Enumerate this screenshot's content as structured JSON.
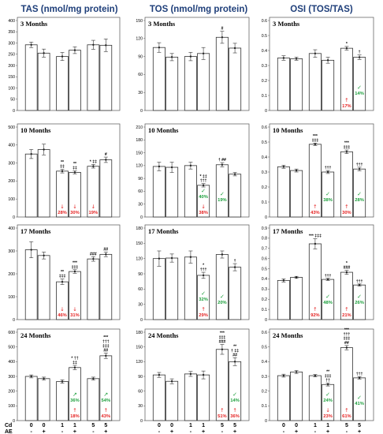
{
  "column_titles": [
    "TAS (nmol/mg protein)",
    "TOS (nmol/mg protein)",
    "OSI (TOS/TAS)"
  ],
  "x_axis": {
    "cd_label": "Cd",
    "ae_label": "AE",
    "cd_values": [
      "0",
      "0",
      "1",
      "1",
      "5",
      "5"
    ],
    "ae_values": [
      "-",
      "+",
      "-",
      "+",
      "-",
      "+"
    ]
  },
  "colors": {
    "title": "#1f3f7a",
    "decrease": "#e41f1f",
    "improve": "#1a9e3a",
    "bar_fill": "#ffffff",
    "bar_stroke": "#333333"
  },
  "chart_data": [
    {
      "type": "bar",
      "row": 0,
      "col": 0,
      "title": "3 Months",
      "ylim": [
        0,
        400
      ],
      "yticks": [
        0,
        50,
        100,
        150,
        200,
        250,
        300,
        350,
        400
      ],
      "values": [
        292,
        255,
        240,
        268,
        292,
        290
      ],
      "errors": [
        12,
        18,
        18,
        15,
        20,
        28
      ],
      "sig": [
        [],
        [],
        [],
        [],
        [],
        []
      ],
      "pct": [
        null,
        null,
        null,
        null,
        null,
        null
      ]
    },
    {
      "type": "bar",
      "row": 0,
      "col": 1,
      "title": "3 Months",
      "ylim": [
        0,
        150
      ],
      "yticks": [
        0,
        30,
        60,
        90,
        120,
        150
      ],
      "values": [
        105,
        89,
        90,
        95,
        122,
        104
      ],
      "errors": [
        8,
        6,
        7,
        10,
        10,
        8
      ],
      "sig": [
        [],
        [],
        [],
        [],
        [
          "#"
        ],
        []
      ],
      "pct": [
        null,
        null,
        null,
        null,
        null,
        null
      ]
    },
    {
      "type": "bar",
      "row": 0,
      "col": 2,
      "title": "3 Months",
      "ylim": [
        0,
        0.6
      ],
      "yticks": [
        0,
        0.1,
        0.2,
        0.3,
        0.4,
        0.5,
        0.6
      ],
      "values": [
        0.35,
        0.345,
        0.38,
        0.335,
        0.415,
        0.355
      ],
      "errors": [
        0.015,
        0.01,
        0.025,
        0.02,
        0.012,
        0.015
      ],
      "sig": [
        [],
        [],
        [],
        [],
        [
          "*"
        ],
        [
          "†"
        ]
      ],
      "pct": [
        null,
        null,
        null,
        null,
        {
          "dir": "up",
          "text": "17%",
          "color": "red"
        },
        {
          "dir": "check",
          "text": "14%",
          "color": "green"
        }
      ]
    },
    {
      "type": "bar",
      "row": 1,
      "col": 0,
      "title": "10 Months",
      "ylim": [
        0,
        500
      ],
      "yticks": [
        0,
        100,
        200,
        300,
        400,
        500
      ],
      "values": [
        350,
        375,
        255,
        248,
        282,
        318
      ],
      "errors": [
        25,
        30,
        10,
        8,
        10,
        15
      ],
      "sig": [
        [],
        [],
        [
          "**",
          "‡‡"
        ],
        [
          "**",
          "‡‡"
        ],
        [
          "* ‡‡"
        ],
        [
          "#"
        ]
      ],
      "pct": [
        null,
        null,
        {
          "dir": "down",
          "text": "28%",
          "color": "red"
        },
        {
          "dir": "down",
          "text": "30%",
          "color": "red"
        },
        {
          "dir": "down",
          "text": "19%",
          "color": "red"
        },
        null
      ]
    },
    {
      "type": "bar",
      "row": 1,
      "col": 1,
      "title": "10 Months",
      "ylim": [
        0,
        210
      ],
      "yticks": [
        0,
        30,
        60,
        90,
        120,
        150,
        180,
        210
      ],
      "values": [
        118,
        116,
        120,
        74,
        122,
        100
      ],
      "errors": [
        10,
        12,
        8,
        4,
        5,
        4
      ],
      "sig": [
        [],
        [],
        [],
        [
          "* ‡‡",
          "†††"
        ],
        [
          "† ##"
        ],
        []
      ],
      "pct": [
        null,
        null,
        null,
        {
          "dir": "down",
          "text": "38%",
          "color": "red",
          "green": "40%"
        },
        {
          "dir": "none",
          "text": "",
          "color": "green",
          "green": "19%"
        },
        null
      ]
    },
    {
      "type": "bar",
      "row": 1,
      "col": 2,
      "title": "10 Months",
      "ylim": [
        0,
        0.6
      ],
      "yticks": [
        0,
        0.1,
        0.2,
        0.3,
        0.4,
        0.5,
        0.6
      ],
      "values": [
        0.335,
        0.31,
        0.485,
        0.3,
        0.435,
        0.32
      ],
      "errors": [
        0.01,
        0.01,
        0.008,
        0.01,
        0.012,
        0.012
      ],
      "sig": [
        [],
        [],
        [
          "***",
          "‡‡‡"
        ],
        [
          "†††"
        ],
        [
          "***",
          "‡‡‡"
        ],
        [
          "†††"
        ]
      ],
      "pct": [
        null,
        null,
        {
          "dir": "up",
          "text": "43%",
          "color": "red"
        },
        {
          "dir": "check",
          "text": "38%",
          "color": "green"
        },
        {
          "dir": "up",
          "text": "30%",
          "color": "red"
        },
        {
          "dir": "check",
          "text": "28%",
          "color": "green"
        }
      ]
    },
    {
      "type": "bar",
      "row": 2,
      "col": 0,
      "title": "17 Months",
      "ylim": [
        0,
        400
      ],
      "yticks": [
        0,
        100,
        200,
        300,
        400
      ],
      "values": [
        305,
        280,
        165,
        210,
        265,
        285
      ],
      "errors": [
        35,
        15,
        12,
        8,
        10,
        10
      ],
      "sig": [
        [],
        [],
        [
          "**",
          "‡‡‡"
        ],
        [
          "***",
          "‡‡‡"
        ],
        [
          "###"
        ],
        [
          "##"
        ]
      ],
      "pct": [
        null,
        null,
        {
          "dir": "down",
          "text": "46%",
          "color": "red"
        },
        {
          "dir": "down",
          "text": "31%",
          "color": "red"
        },
        null,
        null
      ]
    },
    {
      "type": "bar",
      "row": 2,
      "col": 1,
      "title": "17 Months",
      "ylim": [
        0,
        180
      ],
      "yticks": [
        0,
        30,
        60,
        90,
        120,
        150,
        180
      ],
      "values": [
        120,
        121,
        123,
        87,
        128,
        103
      ],
      "errors": [
        15,
        8,
        12,
        6,
        7,
        7
      ],
      "sig": [
        [],
        [],
        [],
        [
          "*",
          "†††"
        ],
        [],
        [
          "†"
        ]
      ],
      "pct": [
        null,
        null,
        null,
        {
          "dir": "up",
          "text": "29%",
          "color": "red",
          "green": "32%"
        },
        {
          "dir": "none",
          "text": "",
          "color": "green",
          "green": "20%"
        },
        null
      ]
    },
    {
      "type": "bar",
      "row": 2,
      "col": 2,
      "title": "17 Months",
      "ylim": [
        0,
        0.9
      ],
      "yticks": [
        0,
        0.1,
        0.2,
        0.3,
        0.4,
        0.5,
        0.6,
        0.7,
        0.8,
        0.9
      ],
      "values": [
        0.385,
        0.415,
        0.745,
        0.395,
        0.465,
        0.34
      ],
      "errors": [
        0.015,
        0.01,
        0.05,
        0.01,
        0.02,
        0.01
      ],
      "sig": [
        [],
        [],
        [
          "*** ‡‡‡"
        ],
        [
          "†††"
        ],
        [
          "*",
          "###"
        ],
        [
          "†††"
        ]
      ],
      "pct": [
        null,
        null,
        {
          "dir": "up",
          "text": "92%",
          "color": "red"
        },
        {
          "dir": "check",
          "text": "48%",
          "color": "green"
        },
        {
          "dir": "up",
          "text": "21%",
          "color": "red"
        },
        {
          "dir": "check",
          "text": "26%",
          "color": "green"
        }
      ]
    },
    {
      "type": "bar",
      "row": 3,
      "col": 0,
      "title": "24 Months",
      "ylim": [
        0,
        600
      ],
      "yticks": [
        0,
        100,
        200,
        300,
        400,
        500,
        600
      ],
      "values": [
        300,
        285,
        265,
        360,
        285,
        440
      ],
      "errors": [
        10,
        10,
        12,
        15,
        10,
        18
      ],
      "sig": [
        [],
        [],
        [],
        [
          "* ††",
          "‡‡"
        ],
        [],
        [
          "***",
          "†††",
          "‡‡‡",
          "##"
        ]
      ],
      "pct": [
        null,
        null,
        null,
        {
          "dir": "up",
          "text": "18%",
          "color": "red",
          "green": "36%",
          "garrow": "up"
        },
        null,
        {
          "dir": "up",
          "text": "43%",
          "color": "red",
          "green": "54%",
          "garrow": "up"
        }
      ]
    },
    {
      "type": "bar",
      "row": 3,
      "col": 1,
      "title": "24 Months",
      "ylim": [
        0,
        180
      ],
      "yticks": [
        0,
        30,
        60,
        90,
        120,
        150,
        180
      ],
      "values": [
        93,
        80,
        95,
        93,
        145,
        120
      ],
      "errors": [
        5,
        5,
        5,
        8,
        10,
        8
      ],
      "sig": [
        [],
        [],
        [],
        [],
        [
          "***",
          "‡‡‡",
          "###"
        ],
        [
          "**",
          "† ‡‡",
          "##"
        ]
      ],
      "pct": [
        null,
        null,
        null,
        null,
        {
          "dir": "up",
          "text": "51%",
          "color": "red"
        },
        {
          "dir": "up",
          "text": "36%",
          "color": "red",
          "green": "14%"
        }
      ]
    },
    {
      "type": "bar",
      "row": 3,
      "col": 2,
      "title": "24 Months",
      "ylim": [
        0,
        0.6
      ],
      "yticks": [
        0,
        0.1,
        0.2,
        0.3,
        0.4,
        0.5,
        0.6
      ],
      "values": [
        0.305,
        0.33,
        0.305,
        0.245,
        0.495,
        0.29
      ],
      "errors": [
        0.01,
        0.01,
        0.008,
        0.01,
        0.015,
        0.008
      ],
      "sig": [
        [],
        [],
        [],
        [
          "**",
          "‡‡‡",
          "††"
        ],
        [
          "***",
          "†††",
          "‡‡‡",
          "##"
        ],
        [
          "†††"
        ]
      ],
      "pct": [
        null,
        null,
        null,
        {
          "dir": "down",
          "text": "23%",
          "color": "red",
          "green": "24%"
        },
        {
          "dir": "up",
          "text": "61%",
          "color": "red"
        },
        {
          "dir": "check",
          "text": "41%",
          "color": "green"
        }
      ]
    }
  ]
}
